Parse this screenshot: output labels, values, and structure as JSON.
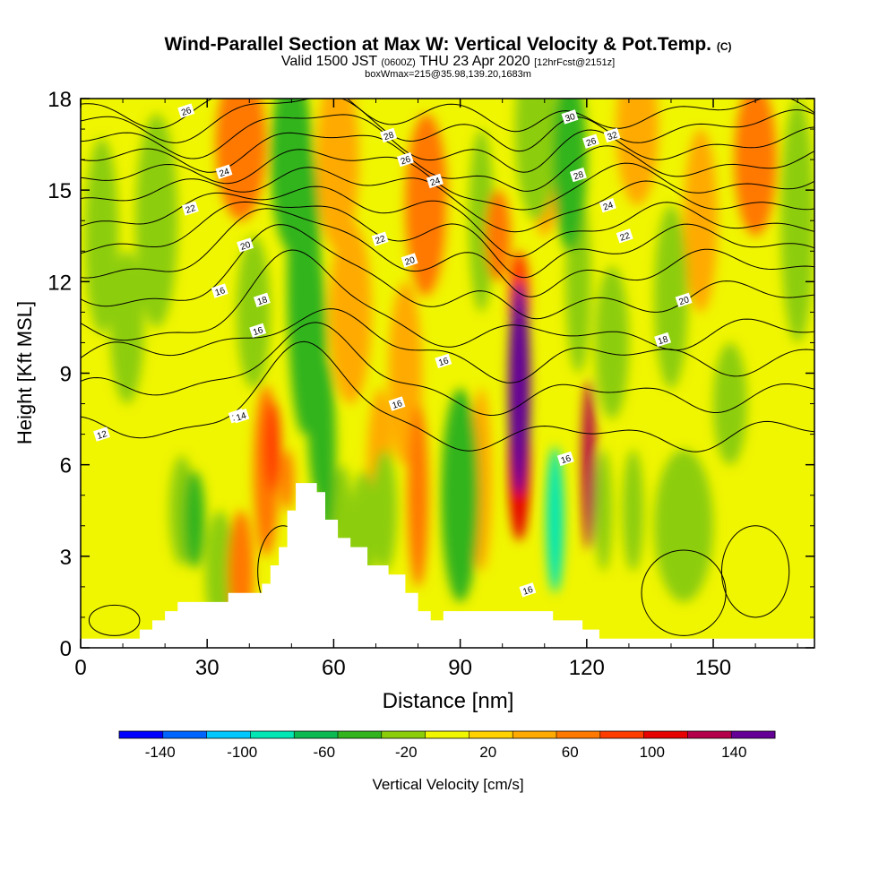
{
  "header": {
    "title_main": "Wind-Parallel Section at Max W: Vertical Velocity & Pot.Temp.",
    "title_units": "(C)",
    "valid_prefix": "Valid 1500 JST",
    "valid_utc": "(0600Z)",
    "valid_date": "THU 23 Apr 2020",
    "forecast_info": "[12hrFcst@2151z]",
    "boxinfo": "boxWmax=215@35.98,139.20,1683m"
  },
  "chart_data": {
    "type": "heatmap",
    "xlabel": "Distance [nm]",
    "ylabel": "Height [Kft MSL]",
    "xlim": [
      0,
      174
    ],
    "ylim": [
      0,
      18
    ],
    "x_ticks": [
      0,
      30,
      60,
      90,
      120,
      150
    ],
    "y_ticks": [
      0,
      3,
      6,
      9,
      12,
      15,
      18
    ],
    "grid": false,
    "colorbar": {
      "label": "Vertical Velocity [cm/s]",
      "tick_labels": [
        "-140",
        "-100",
        "-60",
        "-20",
        "20",
        "60",
        "100",
        "140"
      ],
      "range": [
        -160,
        160
      ],
      "step": 20,
      "colors": [
        "#0000ff",
        "#0064ff",
        "#00c8ff",
        "#00e6b4",
        "#0ab950",
        "#32b41e",
        "#8ccd0a",
        "#f0f500",
        "#ffd200",
        "#ffaa00",
        "#ff7800",
        "#ff3c00",
        "#e60000",
        "#b4004b",
        "#640096"
      ]
    },
    "terrain_kft": [
      [
        0,
        0.3
      ],
      [
        12,
        0.3
      ],
      [
        14,
        0.6
      ],
      [
        17,
        0.9
      ],
      [
        20,
        1.2
      ],
      [
        23,
        1.5
      ],
      [
        33,
        1.5
      ],
      [
        35,
        1.8
      ],
      [
        41,
        1.8
      ],
      [
        43,
        2.1
      ],
      [
        45,
        2.7
      ],
      [
        47,
        3.3
      ],
      [
        49,
        4.5
      ],
      [
        51,
        5.4
      ],
      [
        54,
        5.4
      ],
      [
        56,
        5.1
      ],
      [
        58,
        4.2
      ],
      [
        61,
        3.6
      ],
      [
        64,
        3.3
      ],
      [
        68,
        2.7
      ],
      [
        73,
        2.4
      ],
      [
        77,
        1.8
      ],
      [
        80,
        1.2
      ],
      [
        83,
        0.9
      ],
      [
        86,
        1.2
      ],
      [
        109,
        1.2
      ],
      [
        112,
        0.9
      ],
      [
        119,
        0.6
      ],
      [
        123,
        0.3
      ],
      [
        174,
        0.3
      ]
    ],
    "velocity_cells": [
      {
        "x": 5,
        "z": 13.5,
        "sx": 4,
        "sz": 3.2,
        "w": -30
      },
      {
        "x": 11,
        "z": 10.5,
        "sx": 4,
        "sz": 2.5,
        "w": -28
      },
      {
        "x": 18,
        "z": 14,
        "sx": 5,
        "sz": 3.5,
        "w": -35
      },
      {
        "x": 24,
        "z": 4.5,
        "sx": 3,
        "sz": 1.8,
        "w": -25
      },
      {
        "x": 27,
        "z": 4.2,
        "sx": 2.5,
        "sz": 1.6,
        "w": -45
      },
      {
        "x": 33,
        "z": 2.5,
        "sx": 3.5,
        "sz": 2.0,
        "w": -25
      },
      {
        "x": 38,
        "z": 2.5,
        "sx": 3,
        "sz": 2.0,
        "w": 40
      },
      {
        "x": 38,
        "z": 16.5,
        "sx": 6,
        "sz": 2.5,
        "w": 45
      },
      {
        "x": 41,
        "z": 11,
        "sx": 4,
        "sz": 2.5,
        "w": -22
      },
      {
        "x": 44,
        "z": 5.8,
        "sx": 3,
        "sz": 2.8,
        "w": 55
      },
      {
        "x": 45.5,
        "z": 6.6,
        "sx": 2,
        "sz": 1.5,
        "w": 72
      },
      {
        "x": 49,
        "z": 5.5,
        "sx": 1.5,
        "sz": 1.0,
        "w": 50
      },
      {
        "x": 50,
        "z": 16,
        "sx": 5,
        "sz": 3.0,
        "w": -45
      },
      {
        "x": 53,
        "z": 12,
        "sx": 4,
        "sz": 5.0,
        "w": -50
      },
      {
        "x": 56,
        "z": 9,
        "sx": 2.5,
        "sz": 4.0,
        "w": -55
      },
      {
        "x": 58,
        "z": 6.5,
        "sx": 2.5,
        "sz": 3.0,
        "w": -45
      },
      {
        "x": 61,
        "z": 16,
        "sx": 5,
        "sz": 3.0,
        "w": 28
      },
      {
        "x": 62,
        "z": 4.0,
        "sx": 2.5,
        "sz": 2.0,
        "w": -28
      },
      {
        "x": 64,
        "z": 11,
        "sx": 5,
        "sz": 3.0,
        "w": 30
      },
      {
        "x": 67,
        "z": 3.8,
        "sx": 3,
        "sz": 2.0,
        "w": -28
      },
      {
        "x": 71,
        "z": 6,
        "sx": 3,
        "sz": 2.5,
        "w": 25
      },
      {
        "x": 72,
        "z": 4.5,
        "sx": 3,
        "sz": 2.0,
        "w": -30
      },
      {
        "x": 77,
        "z": 9,
        "sx": 4,
        "sz": 3.0,
        "w": 30
      },
      {
        "x": 80,
        "z": 5,
        "sx": 2.5,
        "sz": 3.0,
        "w": 50
      },
      {
        "x": 82,
        "z": 14.5,
        "sx": 5,
        "sz": 3.0,
        "w": 45
      },
      {
        "x": 86,
        "z": 12,
        "sx": 4,
        "sz": 3.0,
        "w": -18
      },
      {
        "x": 90,
        "z": 5,
        "sx": 4.5,
        "sz": 3.5,
        "w": -42
      },
      {
        "x": 95,
        "z": 5.5,
        "sx": 2.5,
        "sz": 3.0,
        "w": 35
      },
      {
        "x": 95,
        "z": 14,
        "sx": 3,
        "sz": 3.0,
        "w": -25
      },
      {
        "x": 99,
        "z": 13.5,
        "sx": 3,
        "sz": 1.5,
        "w": 40
      },
      {
        "x": 104,
        "z": 8.5,
        "sx": 2.6,
        "sz": 3.5,
        "w": 175
      },
      {
        "x": 104,
        "z": 6,
        "sx": 2.6,
        "sz": 2.5,
        "w": 85
      },
      {
        "x": 104,
        "z": 11.5,
        "sx": 2.5,
        "sz": 1.5,
        "w": 60
      },
      {
        "x": 108,
        "z": 17,
        "sx": 5,
        "sz": 3.0,
        "w": -35
      },
      {
        "x": 110,
        "z": 15,
        "sx": 3,
        "sz": 1.5,
        "w": 25
      },
      {
        "x": 112.5,
        "z": 4.2,
        "sx": 2.1,
        "sz": 2.4,
        "w": -92
      },
      {
        "x": 113,
        "z": 4.5,
        "sx": 0.8,
        "sz": 0.8,
        "w": -40
      },
      {
        "x": 116,
        "z": 16,
        "sx": 4,
        "sz": 3.0,
        "w": -45
      },
      {
        "x": 118,
        "z": 12,
        "sx": 3,
        "sz": 3.0,
        "w": -25
      },
      {
        "x": 120.5,
        "z": 6,
        "sx": 1.6,
        "sz": 2.8,
        "w": 110
      },
      {
        "x": 124,
        "z": 4.5,
        "sx": 2,
        "sz": 2.0,
        "w": -30
      },
      {
        "x": 126,
        "z": 10,
        "sx": 4,
        "sz": 2.5,
        "w": -25
      },
      {
        "x": 131,
        "z": 4.5,
        "sx": 2.5,
        "sz": 2.0,
        "w": -35
      },
      {
        "x": 132,
        "z": 17,
        "sx": 5,
        "sz": 2.5,
        "w": 22
      },
      {
        "x": 140,
        "z": 11.5,
        "sx": 4,
        "sz": 3.0,
        "w": -30
      },
      {
        "x": 143,
        "z": 4,
        "sx": 7,
        "sz": 2.5,
        "w": -32
      },
      {
        "x": 147,
        "z": 14,
        "sx": 4,
        "sz": 3.0,
        "w": 25
      },
      {
        "x": 154,
        "z": 8,
        "sx": 4,
        "sz": 2.0,
        "w": -28
      },
      {
        "x": 160,
        "z": 16,
        "sx": 5,
        "sz": 2.5,
        "w": 45
      },
      {
        "x": 170,
        "z": 14,
        "sx": 4,
        "sz": 4.0,
        "w": -30
      }
    ],
    "isentropes": [
      {
        "base": 9.5,
        "bump": 1.5
      },
      {
        "base": 8.3,
        "bump": 2.0
      },
      {
        "base": 7.0,
        "bump": 2.5,
        "label": "12",
        "lx": 5,
        "lz": 7.0
      },
      {
        "base": 10.3,
        "bump": 2.2,
        "label": "14",
        "lx": 37,
        "lz": 7.6
      },
      {
        "base": 11.5,
        "bump": 2.0,
        "label": "16",
        "lx": 115,
        "lz": 6.2
      },
      {
        "base": 12.5,
        "bump": 1.8
      },
      {
        "base": 13.3,
        "bump": 1.5,
        "label": "18",
        "lx": 138,
        "lz": 10.1
      },
      {
        "base": 14.0,
        "bump": 1.3,
        "label": "20",
        "lx": 143,
        "lz": 11.4
      },
      {
        "base": 14.7,
        "bump": 1.1
      },
      {
        "base": 15.3,
        "bump": 1.0,
        "label": "22",
        "lx": 26,
        "lz": 14.4
      },
      {
        "base": 15.9,
        "bump": 0.9,
        "label": "24",
        "lx": 34,
        "lz": 15.6
      },
      {
        "base": 16.5,
        "bump": 0.8,
        "label": "26",
        "lx": 25,
        "lz": 17.6
      },
      {
        "base": 17.1,
        "bump": 0.7
      },
      {
        "base": 17.6,
        "bump": 0.6
      }
    ],
    "extra_contour_labels": [
      {
        "text": "14",
        "x": 38,
        "z": 7.6
      },
      {
        "text": "16",
        "x": 33,
        "z": 11.7
      },
      {
        "text": "16",
        "x": 42,
        "z": 10.4
      },
      {
        "text": "16",
        "x": 75,
        "z": 8.0
      },
      {
        "text": "16",
        "x": 86,
        "z": 9.4
      },
      {
        "text": "16",
        "x": 106,
        "z": 1.9
      },
      {
        "text": "18",
        "x": 43,
        "z": 11.4
      },
      {
        "text": "20",
        "x": 39,
        "z": 13.2
      },
      {
        "text": "20",
        "x": 78,
        "z": 12.7
      },
      {
        "text": "22",
        "x": 71,
        "z": 13.4
      },
      {
        "text": "22",
        "x": 129,
        "z": 13.5
      },
      {
        "text": "24",
        "x": 84,
        "z": 15.3
      },
      {
        "text": "24",
        "x": 125,
        "z": 14.5
      },
      {
        "text": "26",
        "x": 77,
        "z": 16.0
      },
      {
        "text": "26",
        "x": 121,
        "z": 16.6
      },
      {
        "text": "28",
        "x": 73,
        "z": 16.8
      },
      {
        "text": "28",
        "x": 118,
        "z": 15.5
      },
      {
        "text": "30",
        "x": 116,
        "z": 17.4
      },
      {
        "text": "32",
        "x": 126,
        "z": 16.8
      }
    ]
  }
}
